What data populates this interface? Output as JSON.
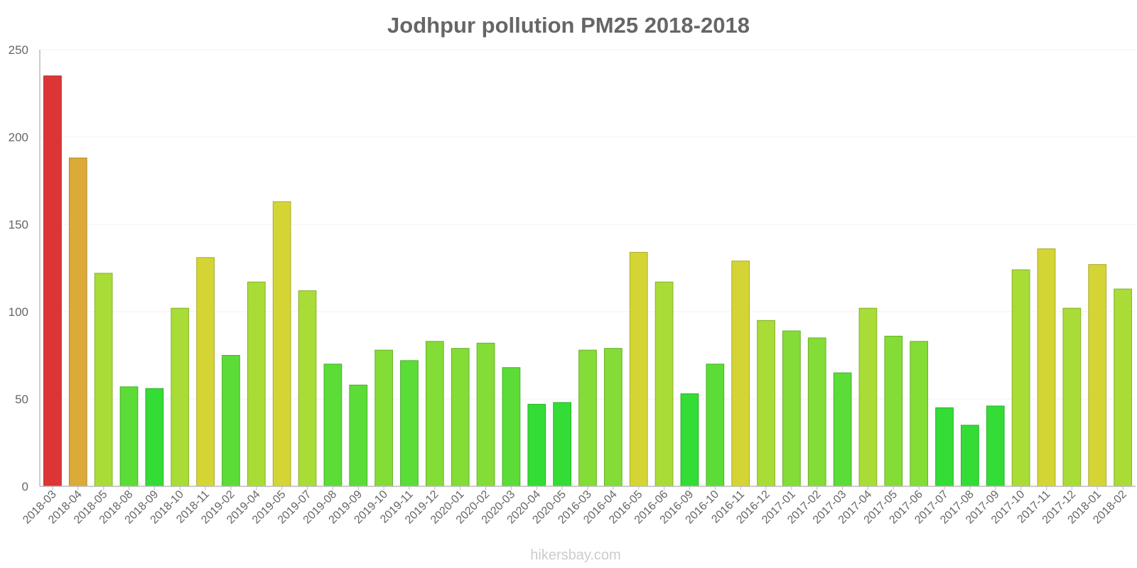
{
  "chart_data": {
    "type": "bar",
    "title": "Jodhpur pollution PM25 2018-2018",
    "xlabel": "",
    "ylabel": "",
    "ylim": [
      0,
      250
    ],
    "yticks": [
      0,
      50,
      100,
      150,
      200,
      250
    ],
    "grid": true,
    "categories": [
      "2018-03",
      "2018-04",
      "2018-05",
      "2018-08",
      "2018-09",
      "2018-10",
      "2018-11",
      "2019-02",
      "2019-04",
      "2019-05",
      "2019-07",
      "2019-08",
      "2019-09",
      "2019-10",
      "2019-11",
      "2019-12",
      "2020-01",
      "2020-02",
      "2020-03",
      "2020-04",
      "2020-05",
      "2016-03",
      "2016-04",
      "2016-05",
      "2016-06",
      "2016-09",
      "2016-10",
      "2016-11",
      "2016-12",
      "2017-01",
      "2017-02",
      "2017-03",
      "2017-04",
      "2017-05",
      "2017-06",
      "2017-07",
      "2017-08",
      "2017-09",
      "2017-10",
      "2017-11",
      "2017-12",
      "2018-01",
      "2018-02"
    ],
    "values": [
      235,
      188,
      122,
      57,
      56,
      102,
      131,
      75,
      117,
      163,
      112,
      70,
      58,
      78,
      72,
      83,
      79,
      82,
      68,
      47,
      48,
      78,
      79,
      134,
      117,
      53,
      70,
      129,
      95,
      89,
      85,
      65,
      102,
      86,
      83,
      45,
      35,
      46,
      124,
      136,
      102,
      127,
      113
    ]
  },
  "credit": "hikersbay.com",
  "colors": {
    "very_high": "#dd3535",
    "high": "#dcaa38",
    "elevated": "#d4d535",
    "moderate": "#a9dc36",
    "fair": "#84dc36",
    "good": "#5bdc36",
    "very_good": "#34dc36",
    "text": "#666666",
    "credit": "#cccccc"
  }
}
